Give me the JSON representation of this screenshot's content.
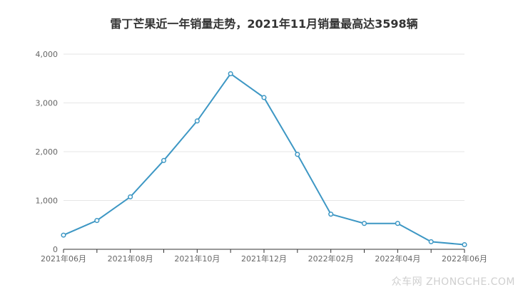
{
  "title": "雷丁芒果近一年销量走势，2021年11月销量最高达3598辆",
  "watermark": "众车网 ZHONGCHE.COM",
  "colors": {
    "line": "#3d97c4",
    "grid": "#e6e6e6",
    "axis": "#333333",
    "text": "#666666",
    "point_fill": "#ffffff"
  },
  "chart_data": {
    "type": "line",
    "title": "雷丁芒果近一年销量走势，2021年11月销量最高达3598辆",
    "x": [
      "2021年06月",
      "2021年07月",
      "2021年08月",
      "2021年09月",
      "2021年10月",
      "2021年11月",
      "2021年12月",
      "2022年01月",
      "2022年02月",
      "2022年03月",
      "2022年04月",
      "2022年05月",
      "2022年06月"
    ],
    "x_tick_labels": [
      "2021年06月",
      "2021年08月",
      "2021年10月",
      "2021年12月",
      "2022年02月",
      "2022年04月",
      "2022年06月"
    ],
    "series": [
      {
        "values": [
          290,
          590,
          1075,
          1820,
          2630,
          3598,
          3110,
          1945,
          720,
          530,
          530,
          155,
          95
        ]
      }
    ],
    "ylim": [
      0,
      4000
    ],
    "y_ticks": [
      0,
      1000,
      2000,
      3000,
      4000
    ],
    "y_tick_labels": [
      "0",
      "1,000",
      "2,000",
      "3,000",
      "4,000"
    ],
    "grid": true,
    "legend": "none"
  }
}
